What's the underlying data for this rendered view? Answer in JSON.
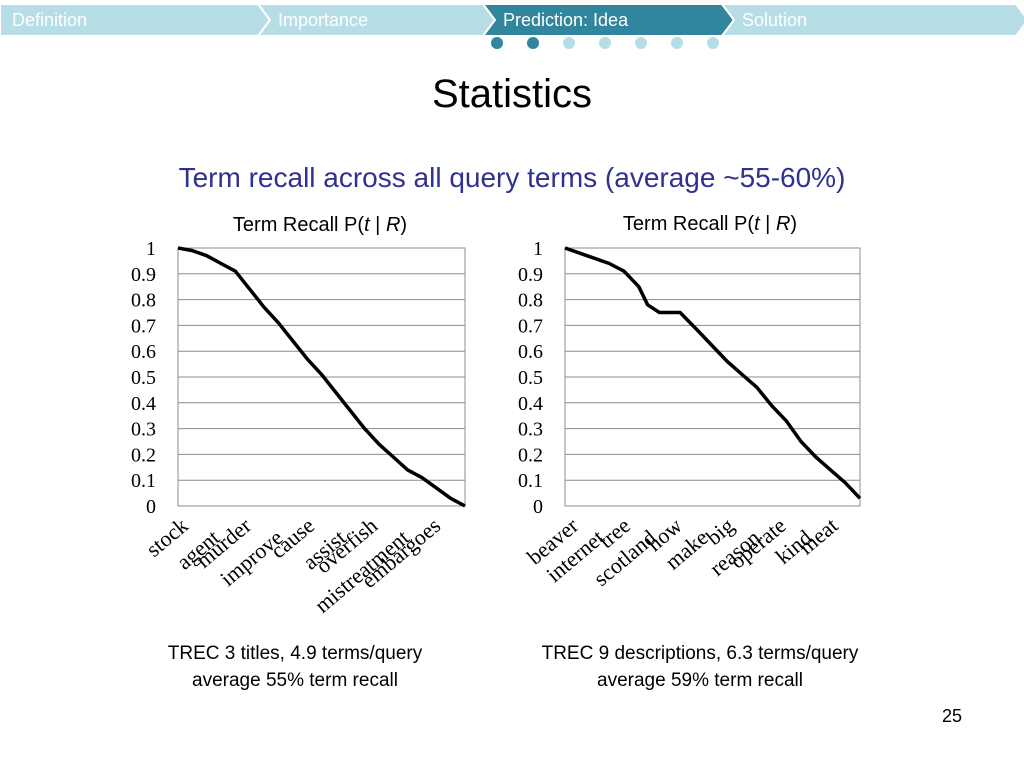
{
  "nav": {
    "items": [
      {
        "label": "Definition",
        "active": false
      },
      {
        "label": "Importance",
        "active": false
      },
      {
        "label": "Prediction: Idea",
        "active": true
      },
      {
        "label": "Solution",
        "active": false
      }
    ],
    "dots": [
      true,
      true,
      false,
      false,
      false,
      false,
      false
    ],
    "colors": {
      "inactive_bg": "#b7dde6",
      "active_bg": "#31859c",
      "inactive_text": "#ffffff",
      "active_text": "#ffffff",
      "dot_filled": "#31859c",
      "dot_empty": "#b7dde6"
    }
  },
  "title": "Statistics",
  "subtitle": "Term recall across all query terms (average ~55-60%)",
  "charts": [
    {
      "title_prefix": "Term Recall  P(",
      "title_t": "t",
      "title_sep": " | ",
      "title_R": "R",
      "title_suffix": ")",
      "caption_line1": "TREC 3 titles, 4.9 terms/query",
      "caption_line2": "average 55% term recall"
    },
    {
      "title_prefix": "Term Recall  P(",
      "title_t": "t",
      "title_sep": " | ",
      "title_R": "R",
      "title_suffix": ")",
      "caption_line1": "TREC 9 descriptions, 6.3 terms/query",
      "caption_line2": "average 59% term recall"
    }
  ],
  "chart_data": [
    {
      "type": "line",
      "title": "Term Recall P(t | R)",
      "ylim": [
        0,
        1
      ],
      "yticks": [
        "1",
        "0.9",
        "0.8",
        "0.7",
        "0.6",
        "0.5",
        "0.4",
        "0.3",
        "0.2",
        "0.1",
        "0"
      ],
      "grid": true,
      "categories": [
        "stock",
        "agent",
        "murder",
        "improve",
        "cause",
        "assist",
        "overfish",
        "mistreatment",
        "embargoes"
      ],
      "x": [
        0,
        0.05,
        0.1,
        0.15,
        0.2,
        0.25,
        0.3,
        0.35,
        0.4,
        0.45,
        0.5,
        0.55,
        0.6,
        0.65,
        0.7,
        0.75,
        0.8,
        0.85,
        0.9,
        0.95,
        1.0
      ],
      "values": [
        1.0,
        0.99,
        0.97,
        0.94,
        0.91,
        0.84,
        0.77,
        0.71,
        0.64,
        0.57,
        0.51,
        0.44,
        0.37,
        0.3,
        0.24,
        0.19,
        0.14,
        0.11,
        0.07,
        0.03,
        0.0
      ]
    },
    {
      "type": "line",
      "title": "Term Recall P(t | R)",
      "ylim": [
        0,
        1
      ],
      "yticks": [
        "1",
        "0.9",
        "0.8",
        "0.7",
        "0.6",
        "0.5",
        "0.4",
        "0.3",
        "0.2",
        "0.1",
        "0"
      ],
      "grid": true,
      "categories": [
        "beaver",
        "internet",
        "tree",
        "scotland",
        "how",
        "make",
        "big",
        "reason",
        "operate",
        "kind",
        "meat"
      ],
      "x": [
        0,
        0.05,
        0.1,
        0.15,
        0.2,
        0.25,
        0.28,
        0.32,
        0.39,
        0.45,
        0.5,
        0.55,
        0.6,
        0.65,
        0.7,
        0.75,
        0.8,
        0.85,
        0.9,
        0.95,
        1.0
      ],
      "values": [
        1.0,
        0.98,
        0.96,
        0.94,
        0.91,
        0.85,
        0.78,
        0.75,
        0.75,
        0.68,
        0.62,
        0.56,
        0.51,
        0.46,
        0.39,
        0.33,
        0.25,
        0.19,
        0.14,
        0.09,
        0.03
      ]
    }
  ],
  "page_number": "25"
}
